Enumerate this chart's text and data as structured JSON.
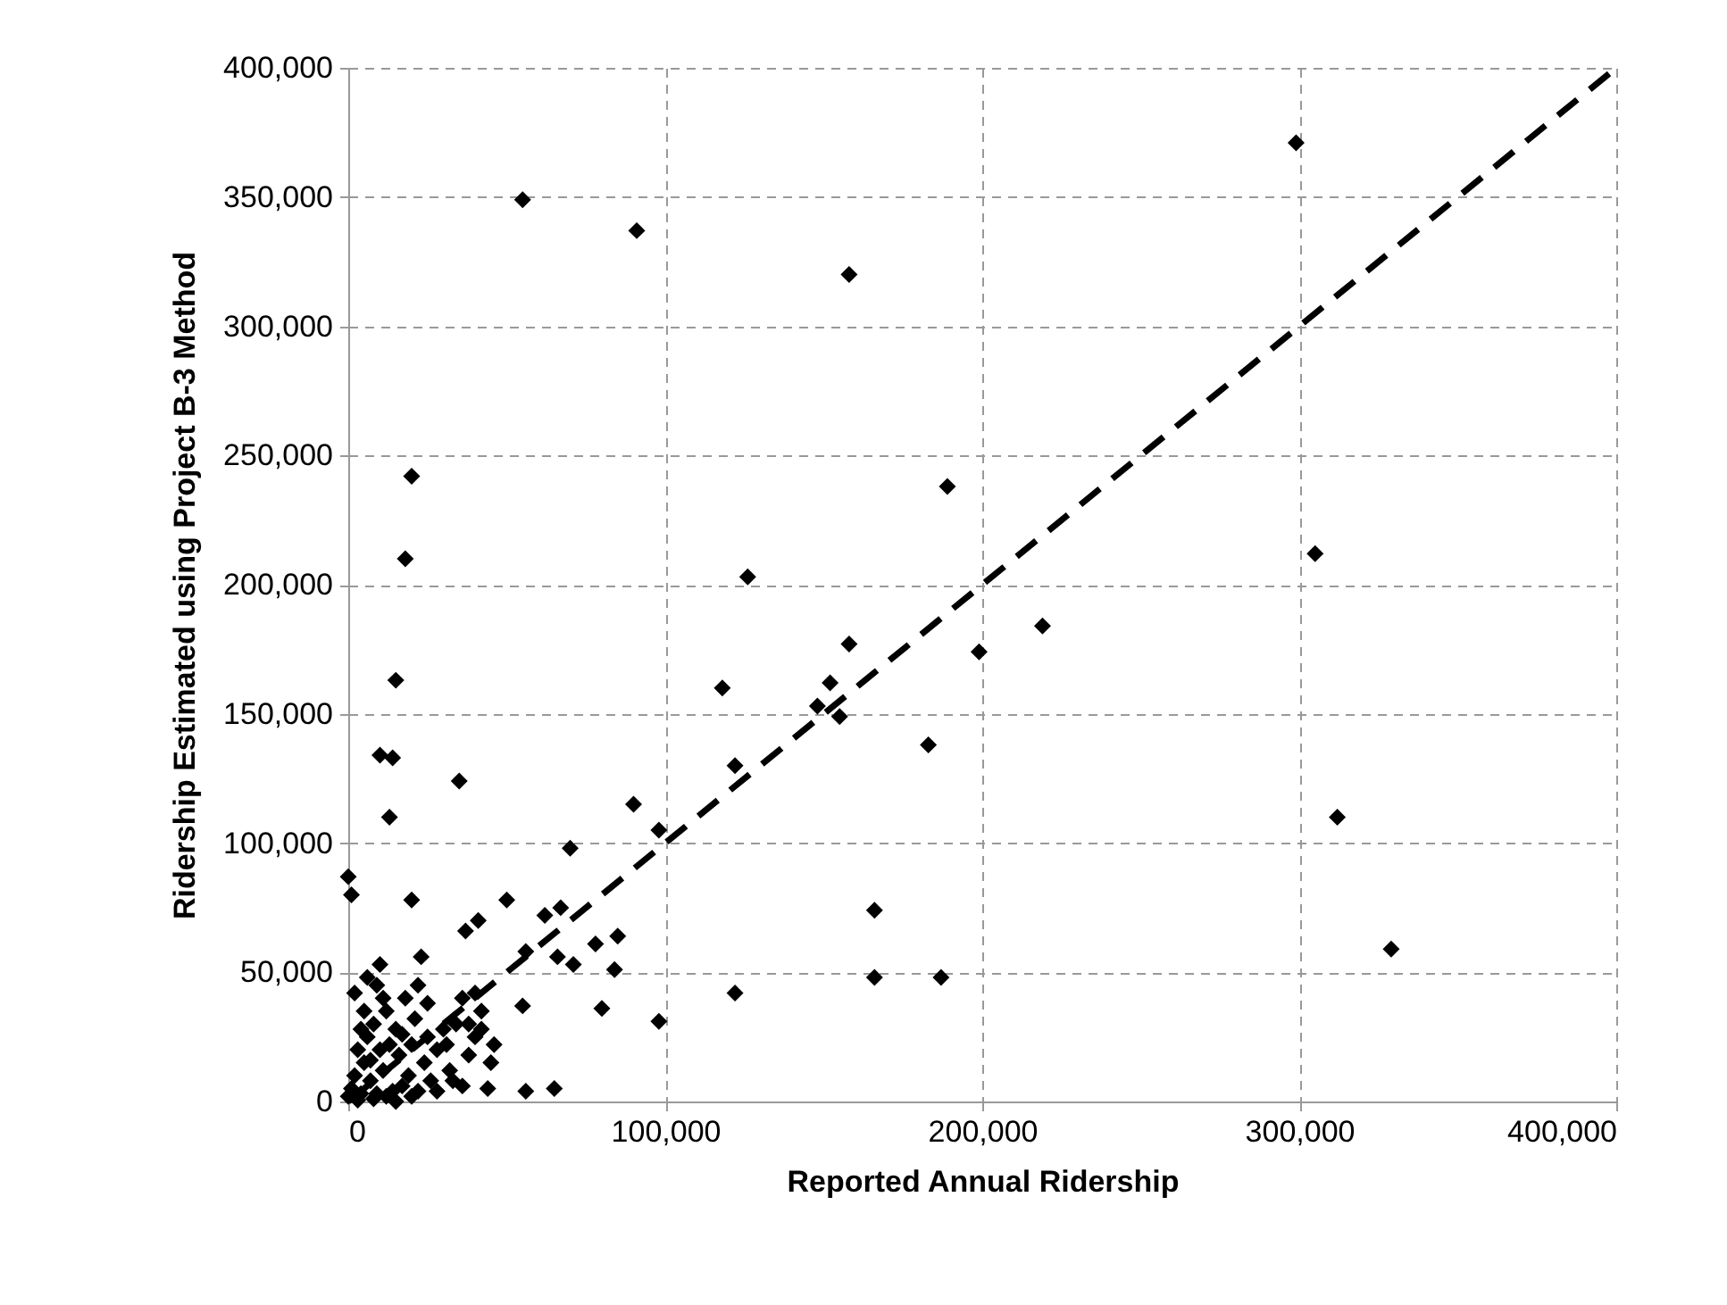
{
  "chart_data": {
    "type": "scatter",
    "xlabel": "Reported Annual Ridership",
    "ylabel": "Ridership Estimated using Project B-3 Method",
    "xlim": [
      0,
      400000
    ],
    "ylim": [
      0,
      400000
    ],
    "xticks": [
      0,
      {
        "value": 100000,
        "label": "100,000"
      },
      {
        "value": 200000,
        "label": "200,000"
      },
      {
        "value": 300000,
        "label": "300,000"
      },
      {
        "value": 400000,
        "label": "400,000"
      }
    ],
    "yticks": [
      0,
      {
        "value": 50000,
        "label": "50,000"
      },
      {
        "value": 100000,
        "label": "100,000"
      },
      {
        "value": 150000,
        "label": "150,000"
      },
      {
        "value": 200000,
        "label": "200,000"
      },
      {
        "value": 250000,
        "label": "250,000"
      },
      {
        "value": 300000,
        "label": "300,000"
      },
      {
        "value": 350000,
        "label": "350,000"
      },
      {
        "value": 400000,
        "label": "400,000"
      }
    ],
    "grid": true,
    "series": [
      {
        "type": "scatter",
        "marker": "diamond",
        "color": "#000000",
        "x": [
          299000,
          55000,
          91000,
          158000,
          20000,
          189000,
          18000,
          305000,
          126000,
          219000,
          158000,
          199000,
          118000,
          15000,
          152000,
          148000,
          155000,
          183000,
          10000,
          14000,
          122000,
          35000,
          312000,
          13000,
          90000,
          98000,
          70000,
          0,
          1000,
          20000,
          50000,
          166000,
          67000,
          62000,
          41000,
          37000,
          78000,
          85000,
          56000,
          84000,
          66000,
          71000,
          329000,
          122000,
          187000,
          166000,
          80000,
          98000,
          55000,
          56000,
          65000,
          40000,
          0,
          1000,
          2000,
          3000,
          4000,
          5000,
          6000,
          7000,
          8000,
          9000,
          10000,
          11000,
          12000,
          13000,
          14000,
          15000,
          16000,
          17000,
          18000,
          19000,
          20000,
          21000,
          22000,
          23000,
          24000,
          25000,
          26000,
          28000,
          30000,
          32000,
          34000,
          36000,
          38000,
          40000,
          42000,
          44000,
          45000,
          46000,
          2000,
          5000,
          3000,
          8000,
          12000,
          15000,
          10000,
          6000,
          4000,
          20000,
          22000,
          28000,
          33000,
          36000,
          38000,
          42000,
          9000,
          11000,
          25000,
          17000,
          31000,
          7000
        ],
        "values": [
          371000,
          349000,
          337000,
          320000,
          242000,
          238000,
          210000,
          212000,
          203000,
          184000,
          177000,
          174000,
          160000,
          163000,
          162000,
          153000,
          149000,
          138000,
          134000,
          133000,
          130000,
          124000,
          110000,
          110000,
          115000,
          105000,
          98000,
          87000,
          80000,
          78000,
          78000,
          74000,
          75000,
          72000,
          70000,
          66000,
          61000,
          64000,
          58000,
          51000,
          56000,
          53000,
          59000,
          42000,
          48000,
          48000,
          36000,
          31000,
          37000,
          4000,
          5000,
          42000,
          2000,
          5000,
          10000,
          20000,
          3000,
          15000,
          25000,
          8000,
          30000,
          45000,
          53000,
          12000,
          35000,
          22000,
          4000,
          28000,
          18000,
          6000,
          40000,
          10000,
          2000,
          32000,
          45000,
          56000,
          15000,
          25000,
          8000,
          20000,
          28000,
          12000,
          30000,
          6000,
          18000,
          25000,
          35000,
          5000,
          15000,
          22000,
          42000,
          35000,
          500,
          1000,
          2000,
          0,
          20000,
          48000,
          28000,
          22000,
          4000,
          4000,
          8000,
          40000,
          30000,
          28000,
          3000,
          40000,
          38000,
          26000,
          22000,
          16000
        ]
      },
      {
        "type": "line",
        "color": "#000000",
        "line_style": "dashed",
        "x": [
          0,
          400000
        ],
        "values": [
          0,
          400000
        ]
      }
    ]
  }
}
